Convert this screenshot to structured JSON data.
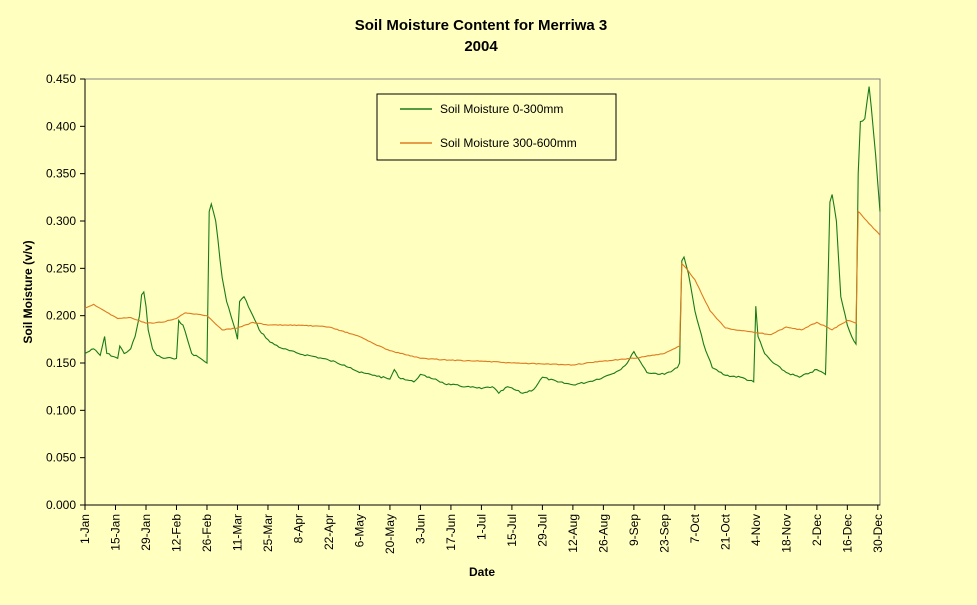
{
  "chart_data": {
    "type": "line",
    "title": "Soil Moisture Content for Merriwa 3",
    "subtitle": "2004",
    "xlabel": "Date",
    "ylabel": "Soil Moisture (v/v)",
    "xlim": [
      "2004-01-01",
      "2004-12-31"
    ],
    "ylim": [
      0,
      0.45
    ],
    "ytick_step": 0.05,
    "ytick_decimals": 3,
    "grid": false,
    "legend": "top-center",
    "x_ticks": [
      {
        "date": "2004-01-01",
        "label": "1-Jan"
      },
      {
        "date": "2004-01-15",
        "label": "15-Jan"
      },
      {
        "date": "2004-01-29",
        "label": "29-Jan"
      },
      {
        "date": "2004-02-12",
        "label": "12-Feb"
      },
      {
        "date": "2004-02-26",
        "label": "26-Feb"
      },
      {
        "date": "2004-03-11",
        "label": "11-Mar"
      },
      {
        "date": "2004-03-25",
        "label": "25-Mar"
      },
      {
        "date": "2004-04-08",
        "label": "8-Apr"
      },
      {
        "date": "2004-04-22",
        "label": "22-Apr"
      },
      {
        "date": "2004-05-06",
        "label": "6-May"
      },
      {
        "date": "2004-05-20",
        "label": "20-May"
      },
      {
        "date": "2004-06-03",
        "label": "3-Jun"
      },
      {
        "date": "2004-06-17",
        "label": "17-Jun"
      },
      {
        "date": "2004-07-01",
        "label": "1-Jul"
      },
      {
        "date": "2004-07-15",
        "label": "15-Jul"
      },
      {
        "date": "2004-07-29",
        "label": "29-Jul"
      },
      {
        "date": "2004-08-12",
        "label": "12-Aug"
      },
      {
        "date": "2004-08-26",
        "label": "26-Aug"
      },
      {
        "date": "2004-09-09",
        "label": "9-Sep"
      },
      {
        "date": "2004-09-23",
        "label": "23-Sep"
      },
      {
        "date": "2004-10-07",
        "label": "7-Oct"
      },
      {
        "date": "2004-10-21",
        "label": "21-Oct"
      },
      {
        "date": "2004-11-04",
        "label": "4-Nov"
      },
      {
        "date": "2004-11-18",
        "label": "18-Nov"
      },
      {
        "date": "2004-12-02",
        "label": "2-Dec"
      },
      {
        "date": "2004-12-16",
        "label": "16-Dec"
      },
      {
        "date": "2004-12-30",
        "label": "30-Dec"
      }
    ],
    "series": [
      {
        "name": "Soil Moisture 0-300mm",
        "color": "#1a7a1a",
        "points": [
          [
            "2004-01-01",
            0.16
          ],
          [
            "2004-01-05",
            0.165
          ],
          [
            "2004-01-08",
            0.158
          ],
          [
            "2004-01-10",
            0.178
          ],
          [
            "2004-01-11",
            0.16
          ],
          [
            "2004-01-16",
            0.155
          ],
          [
            "2004-01-17",
            0.168
          ],
          [
            "2004-01-19",
            0.16
          ],
          [
            "2004-01-22",
            0.165
          ],
          [
            "2004-01-24",
            0.178
          ],
          [
            "2004-01-26",
            0.2
          ],
          [
            "2004-01-27",
            0.222
          ],
          [
            "2004-01-28",
            0.225
          ],
          [
            "2004-01-29",
            0.21
          ],
          [
            "2004-01-30",
            0.185
          ],
          [
            "2004-02-01",
            0.165
          ],
          [
            "2004-02-03",
            0.158
          ],
          [
            "2004-02-06",
            0.155
          ],
          [
            "2004-02-10",
            0.155
          ],
          [
            "2004-02-12",
            0.155
          ],
          [
            "2004-02-13",
            0.195
          ],
          [
            "2004-02-15",
            0.19
          ],
          [
            "2004-02-17",
            0.175
          ],
          [
            "2004-02-19",
            0.16
          ],
          [
            "2004-02-23",
            0.155
          ],
          [
            "2004-02-26",
            0.15
          ],
          [
            "2004-02-27",
            0.31
          ],
          [
            "2004-02-28",
            0.318
          ],
          [
            "2004-03-01",
            0.3
          ],
          [
            "2004-03-04",
            0.24
          ],
          [
            "2004-03-06",
            0.215
          ],
          [
            "2004-03-08",
            0.2
          ],
          [
            "2004-03-10",
            0.185
          ],
          [
            "2004-03-11",
            0.175
          ],
          [
            "2004-03-12",
            0.215
          ],
          [
            "2004-03-14",
            0.22
          ],
          [
            "2004-03-17",
            0.205
          ],
          [
            "2004-03-21",
            0.185
          ],
          [
            "2004-03-26",
            0.172
          ],
          [
            "2004-04-01",
            0.165
          ],
          [
            "2004-04-08",
            0.16
          ],
          [
            "2004-04-15",
            0.157
          ],
          [
            "2004-04-22",
            0.153
          ],
          [
            "2004-04-29",
            0.148
          ],
          [
            "2004-05-02",
            0.145
          ],
          [
            "2004-05-06",
            0.14
          ],
          [
            "2004-05-13",
            0.137
          ],
          [
            "2004-05-20",
            0.133
          ],
          [
            "2004-05-22",
            0.143
          ],
          [
            "2004-05-24",
            0.135
          ],
          [
            "2004-05-31",
            0.13
          ],
          [
            "2004-06-03",
            0.138
          ],
          [
            "2004-06-06",
            0.135
          ],
          [
            "2004-06-10",
            0.133
          ],
          [
            "2004-06-14",
            0.128
          ],
          [
            "2004-06-17",
            0.127
          ],
          [
            "2004-06-24",
            0.125
          ],
          [
            "2004-07-01",
            0.123
          ],
          [
            "2004-07-06",
            0.125
          ],
          [
            "2004-07-09",
            0.118
          ],
          [
            "2004-07-13",
            0.125
          ],
          [
            "2004-07-20",
            0.118
          ],
          [
            "2004-07-25",
            0.122
          ],
          [
            "2004-07-29",
            0.135
          ],
          [
            "2004-08-05",
            0.13
          ],
          [
            "2004-08-12",
            0.127
          ],
          [
            "2004-08-19",
            0.13
          ],
          [
            "2004-08-26",
            0.135
          ],
          [
            "2004-09-02",
            0.142
          ],
          [
            "2004-09-06",
            0.15
          ],
          [
            "2004-09-09",
            0.162
          ],
          [
            "2004-09-11",
            0.155
          ],
          [
            "2004-09-15",
            0.14
          ],
          [
            "2004-09-23",
            0.138
          ],
          [
            "2004-09-29",
            0.145
          ],
          [
            "2004-09-30",
            0.15
          ],
          [
            "2004-10-01",
            0.258
          ],
          [
            "2004-10-02",
            0.262
          ],
          [
            "2004-10-04",
            0.245
          ],
          [
            "2004-10-07",
            0.205
          ],
          [
            "2004-10-11",
            0.17
          ],
          [
            "2004-10-15",
            0.145
          ],
          [
            "2004-10-21",
            0.137
          ],
          [
            "2004-10-28",
            0.135
          ],
          [
            "2004-11-03",
            0.13
          ],
          [
            "2004-11-04",
            0.21
          ],
          [
            "2004-11-05",
            0.178
          ],
          [
            "2004-11-08",
            0.16
          ],
          [
            "2004-11-12",
            0.15
          ],
          [
            "2004-11-18",
            0.14
          ],
          [
            "2004-11-24",
            0.135
          ],
          [
            "2004-11-29",
            0.14
          ],
          [
            "2004-12-02",
            0.143
          ],
          [
            "2004-12-06",
            0.138
          ],
          [
            "2004-12-07",
            0.22
          ],
          [
            "2004-12-08",
            0.32
          ],
          [
            "2004-12-09",
            0.328
          ],
          [
            "2004-12-11",
            0.3
          ],
          [
            "2004-12-13",
            0.22
          ],
          [
            "2004-12-16",
            0.19
          ],
          [
            "2004-12-18",
            0.178
          ],
          [
            "2004-12-20",
            0.17
          ],
          [
            "2004-12-21",
            0.35
          ],
          [
            "2004-12-22",
            0.405
          ],
          [
            "2004-12-24",
            0.408
          ],
          [
            "2004-12-26",
            0.442
          ],
          [
            "2004-12-27",
            0.42
          ],
          [
            "2004-12-29",
            0.37
          ],
          [
            "2004-12-31",
            0.31
          ]
        ]
      },
      {
        "name": "Soil Moisture 300-600mm",
        "color": "#e07a20",
        "points": [
          [
            "2004-01-01",
            0.208
          ],
          [
            "2004-01-05",
            0.212
          ],
          [
            "2004-01-10",
            0.205
          ],
          [
            "2004-01-16",
            0.197
          ],
          [
            "2004-01-22",
            0.198
          ],
          [
            "2004-01-29",
            0.192
          ],
          [
            "2004-02-05",
            0.193
          ],
          [
            "2004-02-12",
            0.197
          ],
          [
            "2004-02-16",
            0.203
          ],
          [
            "2004-02-26",
            0.2
          ],
          [
            "2004-03-04",
            0.185
          ],
          [
            "2004-03-11",
            0.187
          ],
          [
            "2004-03-18",
            0.193
          ],
          [
            "2004-03-25",
            0.19
          ],
          [
            "2004-04-08",
            0.19
          ],
          [
            "2004-04-22",
            0.188
          ],
          [
            "2004-05-06",
            0.178
          ],
          [
            "2004-05-13",
            0.17
          ],
          [
            "2004-05-20",
            0.163
          ],
          [
            "2004-06-03",
            0.155
          ],
          [
            "2004-06-17",
            0.153
          ],
          [
            "2004-07-01",
            0.152
          ],
          [
            "2004-07-15",
            0.15
          ],
          [
            "2004-07-29",
            0.149
          ],
          [
            "2004-08-12",
            0.148
          ],
          [
            "2004-08-26",
            0.152
          ],
          [
            "2004-09-09",
            0.155
          ],
          [
            "2004-09-23",
            0.16
          ],
          [
            "2004-09-30",
            0.168
          ],
          [
            "2004-10-01",
            0.255
          ],
          [
            "2004-10-03",
            0.25
          ],
          [
            "2004-10-07",
            0.238
          ],
          [
            "2004-10-14",
            0.205
          ],
          [
            "2004-10-21",
            0.187
          ],
          [
            "2004-11-04",
            0.182
          ],
          [
            "2004-11-11",
            0.18
          ],
          [
            "2004-11-18",
            0.188
          ],
          [
            "2004-11-25",
            0.185
          ],
          [
            "2004-12-02",
            0.193
          ],
          [
            "2004-12-09",
            0.185
          ],
          [
            "2004-12-16",
            0.195
          ],
          [
            "2004-12-20",
            0.192
          ],
          [
            "2004-12-21",
            0.31
          ],
          [
            "2004-12-25",
            0.3
          ],
          [
            "2004-12-31",
            0.285
          ]
        ]
      }
    ]
  }
}
